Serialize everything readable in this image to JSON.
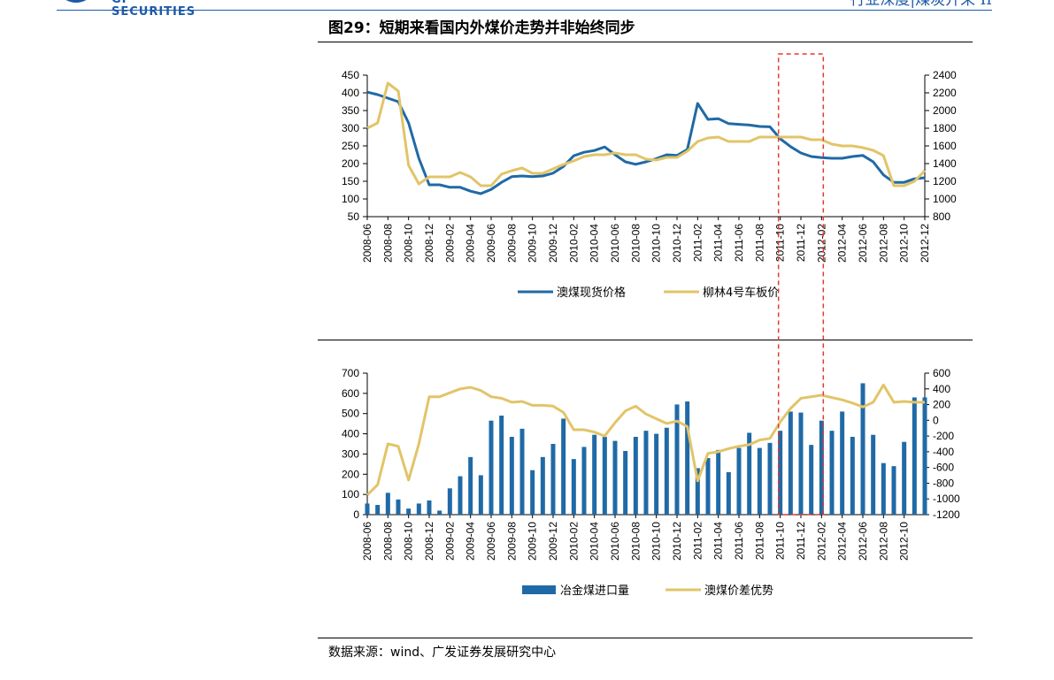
{
  "header": {
    "logo_text": "GF SECURITIES",
    "right_text": "行业深度|煤炭开采 II"
  },
  "figure": {
    "title": "图29：短期来看国内外煤价走势并非始终同步"
  },
  "source": "数据来源：wind、广发证券发展研究中心",
  "colors": {
    "blue": "#1f6aa6",
    "gold": "#e2c469",
    "highlight_box": "#e8362e",
    "header_blue": "#1d5aa8"
  },
  "highlight": {
    "note": "red dashed box spanning 2011-10 to 2012-02 across both charts",
    "start": "2011-10",
    "end": "2012-02"
  },
  "chart_data": [
    {
      "type": "line",
      "x": [
        "2008-06",
        "2008-07",
        "2008-08",
        "2008-09",
        "2008-10",
        "2008-11",
        "2008-12",
        "2009-01",
        "2009-02",
        "2009-03",
        "2009-04",
        "2009-05",
        "2009-06",
        "2009-07",
        "2009-08",
        "2009-09",
        "2009-10",
        "2009-11",
        "2009-12",
        "2010-01",
        "2010-02",
        "2010-03",
        "2010-04",
        "2010-05",
        "2010-06",
        "2010-07",
        "2010-08",
        "2010-09",
        "2010-10",
        "2010-11",
        "2010-12",
        "2011-01",
        "2011-02",
        "2011-03",
        "2011-04",
        "2011-05",
        "2011-06",
        "2011-07",
        "2011-08",
        "2011-09",
        "2011-10",
        "2011-11",
        "2011-12",
        "2012-01",
        "2012-02",
        "2012-03",
        "2012-04",
        "2012-05",
        "2012-06",
        "2012-07",
        "2012-08",
        "2012-09",
        "2012-10",
        "2012-11",
        "2012-12"
      ],
      "x_tick_labels": [
        "2008-06",
        "2008-08",
        "2008-10",
        "2008-12",
        "2009-02",
        "2009-04",
        "2009-06",
        "2009-08",
        "2009-10",
        "2009-12",
        "2010-02",
        "2010-04",
        "2010-06",
        "2010-08",
        "2010-10",
        "2010-12",
        "2011-02",
        "2011-04",
        "2011-06",
        "2011-08",
        "2011-10",
        "2011-12",
        "2012-02",
        "2012-04",
        "2012-06",
        "2012-08",
        "2012-10",
        "2012-12"
      ],
      "y_left": {
        "range": [
          50,
          450
        ],
        "ticks": [
          50,
          100,
          150,
          200,
          250,
          300,
          350,
          400,
          450
        ]
      },
      "y_right": {
        "range": [
          800,
          2400
        ],
        "ticks": [
          800,
          1000,
          1200,
          1400,
          1600,
          1800,
          2000,
          2200,
          2400
        ]
      },
      "series": [
        {
          "name": "澳煤现货价格",
          "axis": "left",
          "color": "#1f6aa6",
          "values": [
            402,
            395,
            385,
            375,
            315,
            215,
            140,
            140,
            133,
            133,
            122,
            115,
            127,
            147,
            163,
            165,
            163,
            165,
            173,
            192,
            222,
            232,
            237,
            247,
            225,
            205,
            198,
            205,
            214,
            225,
            223,
            240,
            370,
            325,
            327,
            313,
            311,
            309,
            305,
            304,
            270,
            248,
            230,
            220,
            217,
            215,
            215,
            220,
            223,
            205,
            168,
            147,
            147,
            157,
            160
          ]
        },
        {
          "name": "柳林4号车板价",
          "axis": "right",
          "color": "#e2c469",
          "values": [
            1800,
            1860,
            2310,
            2220,
            1380,
            1170,
            1250,
            1250,
            1250,
            1300,
            1250,
            1150,
            1150,
            1280,
            1320,
            1350,
            1290,
            1290,
            1340,
            1390,
            1430,
            1480,
            1500,
            1500,
            1520,
            1500,
            1500,
            1450,
            1440,
            1470,
            1470,
            1540,
            1650,
            1690,
            1700,
            1650,
            1650,
            1650,
            1700,
            1700,
            1700,
            1700,
            1700,
            1670,
            1670,
            1620,
            1600,
            1600,
            1580,
            1550,
            1490,
            1150,
            1150,
            1200,
            1320
          ]
        }
      ],
      "legend_position": "bottom-center",
      "grid": false
    },
    {
      "type": "bar",
      "x": [
        "2008-06",
        "2008-07",
        "2008-08",
        "2008-09",
        "2008-10",
        "2008-11",
        "2008-12",
        "2009-01",
        "2009-02",
        "2009-03",
        "2009-04",
        "2009-05",
        "2009-06",
        "2009-07",
        "2009-08",
        "2009-09",
        "2009-10",
        "2009-11",
        "2009-12",
        "2010-01",
        "2010-02",
        "2010-03",
        "2010-04",
        "2010-05",
        "2010-06",
        "2010-07",
        "2010-08",
        "2010-09",
        "2010-10",
        "2010-11",
        "2010-12",
        "2011-01",
        "2011-02",
        "2011-03",
        "2011-04",
        "2011-05",
        "2011-06",
        "2011-07",
        "2011-08",
        "2011-09",
        "2011-10",
        "2011-11",
        "2011-12",
        "2012-01",
        "2012-02",
        "2012-03",
        "2012-04",
        "2012-05",
        "2012-06",
        "2012-07",
        "2012-08",
        "2012-09",
        "2012-10",
        "2012-11",
        "2012-12"
      ],
      "x_tick_labels": [
        "2008-06",
        "2008-08",
        "2008-10",
        "2008-12",
        "2009-02",
        "2009-04",
        "2009-06",
        "2009-08",
        "2009-10",
        "2009-12",
        "2010-02",
        "2010-04",
        "2010-06",
        "2010-08",
        "2010-10",
        "2010-12",
        "2011-02",
        "2011-04",
        "2011-06",
        "2011-08",
        "2011-10",
        "2011-12",
        "2012-02",
        "2012-04",
        "2012-06",
        "2012-08",
        "2012-10"
      ],
      "y_left": {
        "range": [
          0,
          700
        ],
        "ticks": [
          0,
          100,
          200,
          300,
          400,
          500,
          600,
          700
        ]
      },
      "y_right": {
        "range": [
          -1200,
          600
        ],
        "ticks": [
          -1200,
          -1000,
          -800,
          -600,
          -400,
          -200,
          0,
          200,
          400,
          600
        ]
      },
      "series": [
        {
          "name": "冶金煤进口量",
          "kind": "bar",
          "axis": "left",
          "color": "#1f6aa6",
          "values": [
            55,
            48,
            108,
            75,
            30,
            55,
            70,
            20,
            130,
            190,
            285,
            195,
            465,
            490,
            385,
            425,
            220,
            285,
            350,
            475,
            275,
            335,
            395,
            385,
            365,
            315,
            385,
            415,
            400,
            430,
            545,
            560,
            230,
            280,
            320,
            210,
            330,
            405,
            330,
            355,
            415,
            510,
            505,
            345,
            465,
            415,
            510,
            385,
            650,
            395,
            255,
            240,
            360,
            580,
            580
          ]
        },
        {
          "name": "澳煤价差优势",
          "kind": "line",
          "axis": "right",
          "color": "#e2c469",
          "values": [
            -950,
            -820,
            -300,
            -330,
            -760,
            -300,
            300,
            300,
            350,
            400,
            420,
            380,
            300,
            280,
            230,
            240,
            190,
            190,
            180,
            100,
            -120,
            -120,
            -150,
            -200,
            -30,
            120,
            180,
            80,
            20,
            -40,
            -10,
            -80,
            -770,
            -420,
            -400,
            -360,
            -330,
            -310,
            -250,
            -230,
            -20,
            150,
            280,
            300,
            320,
            290,
            260,
            220,
            170,
            230,
            450,
            230,
            240,
            230,
            230
          ]
        }
      ],
      "legend_position": "bottom-center",
      "grid": false
    }
  ]
}
